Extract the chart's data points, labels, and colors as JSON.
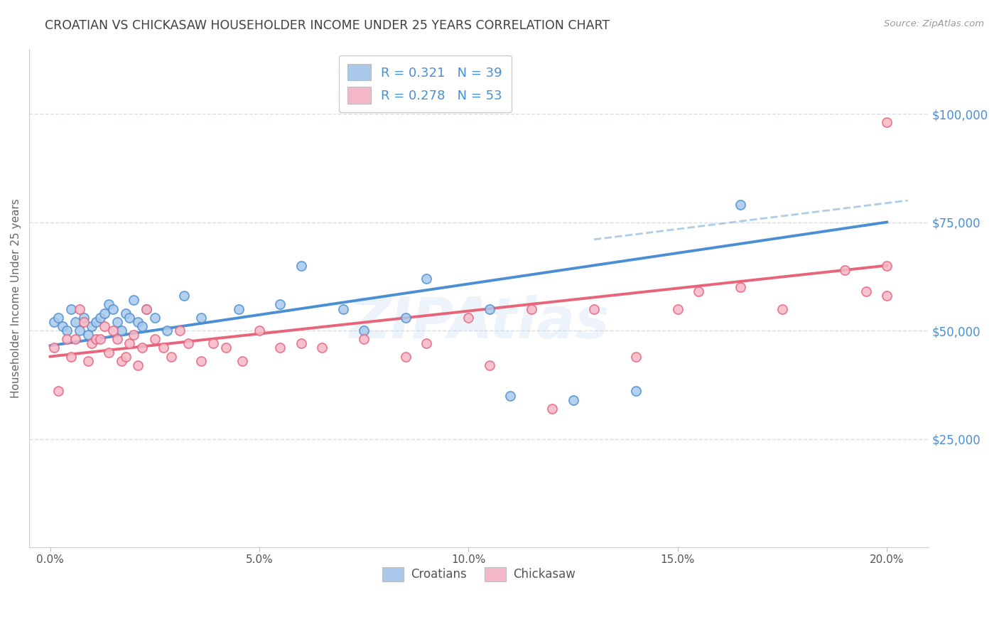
{
  "title": "CROATIAN VS CHICKASAW HOUSEHOLDER INCOME UNDER 25 YEARS CORRELATION CHART",
  "source": "Source: ZipAtlas.com",
  "ylabel": "Householder Income Under 25 years",
  "xlabel_ticks": [
    "0.0%",
    "5.0%",
    "10.0%",
    "15.0%",
    "20.0%"
  ],
  "xlabel_values": [
    0.0,
    5.0,
    10.0,
    15.0,
    20.0
  ],
  "ytick_labels": [
    "$25,000",
    "$50,000",
    "$75,000",
    "$100,000"
  ],
  "ytick_values": [
    25000,
    50000,
    75000,
    100000
  ],
  "xlim": [
    -0.5,
    21.0
  ],
  "ylim": [
    0,
    115000
  ],
  "watermark": "ZIPAtlas",
  "croatian_color": "#aac9ea",
  "chickasaw_color": "#f5b8c8",
  "line_blue": "#4a8fd4",
  "line_pink": "#e8647a",
  "dash_blue": "#8ab8e0",
  "grid_color": "#d5dce8",
  "title_color": "#404040",
  "axis_label_color": "#666666",
  "right_tick_color": "#4a8fd4",
  "legend_text_color": "#333333",
  "legend_num_color": "#4a8fd4",
  "legend_n_num_color": "#e05020",
  "croatians_x": [
    0.1,
    0.2,
    0.3,
    0.4,
    0.5,
    0.6,
    0.7,
    0.8,
    0.9,
    1.0,
    1.1,
    1.2,
    1.3,
    1.4,
    1.5,
    1.6,
    1.7,
    1.8,
    1.9,
    2.0,
    2.1,
    2.2,
    2.3,
    2.5,
    2.8,
    3.2,
    3.6,
    4.5,
    5.5,
    6.0,
    7.0,
    7.5,
    8.5,
    9.0,
    10.5,
    11.0,
    12.5,
    14.0,
    16.5
  ],
  "croatians_y": [
    52000,
    53000,
    51000,
    50000,
    55000,
    52000,
    50000,
    53000,
    49000,
    51000,
    52000,
    53000,
    54000,
    56000,
    55000,
    52000,
    50000,
    54000,
    53000,
    57000,
    52000,
    51000,
    55000,
    53000,
    50000,
    58000,
    53000,
    55000,
    56000,
    65000,
    55000,
    50000,
    53000,
    62000,
    55000,
    35000,
    34000,
    36000,
    79000
  ],
  "chickasaw_x": [
    0.1,
    0.2,
    0.4,
    0.5,
    0.6,
    0.7,
    0.8,
    0.9,
    1.0,
    1.1,
    1.2,
    1.3,
    1.4,
    1.5,
    1.6,
    1.7,
    1.8,
    1.9,
    2.0,
    2.1,
    2.2,
    2.3,
    2.5,
    2.7,
    2.9,
    3.1,
    3.3,
    3.6,
    3.9,
    4.2,
    4.6,
    5.0,
    5.5,
    6.0,
    6.5,
    7.5,
    8.5,
    9.0,
    10.0,
    10.5,
    11.5,
    12.0,
    13.0,
    14.0,
    15.0,
    15.5,
    16.5,
    17.5,
    19.0,
    19.5,
    20.0,
    20.0,
    20.0
  ],
  "chickasaw_y": [
    46000,
    36000,
    48000,
    44000,
    48000,
    55000,
    52000,
    43000,
    47000,
    48000,
    48000,
    51000,
    45000,
    50000,
    48000,
    43000,
    44000,
    47000,
    49000,
    42000,
    46000,
    55000,
    48000,
    46000,
    44000,
    50000,
    47000,
    43000,
    47000,
    46000,
    43000,
    50000,
    46000,
    47000,
    46000,
    48000,
    44000,
    47000,
    53000,
    42000,
    55000,
    32000,
    55000,
    44000,
    55000,
    59000,
    60000,
    55000,
    64000,
    59000,
    65000,
    58000,
    98000
  ],
  "cr_reg_x0": 0.0,
  "cr_reg_y0": 46500,
  "cr_reg_x1": 20.0,
  "cr_reg_y1": 75000,
  "ch_reg_x0": 0.0,
  "ch_reg_y0": 44000,
  "ch_reg_x1": 20.0,
  "ch_reg_y1": 65000,
  "dash_x0": 13.0,
  "dash_x1": 20.5,
  "dash_y0": 71000,
  "dash_y1": 80000
}
